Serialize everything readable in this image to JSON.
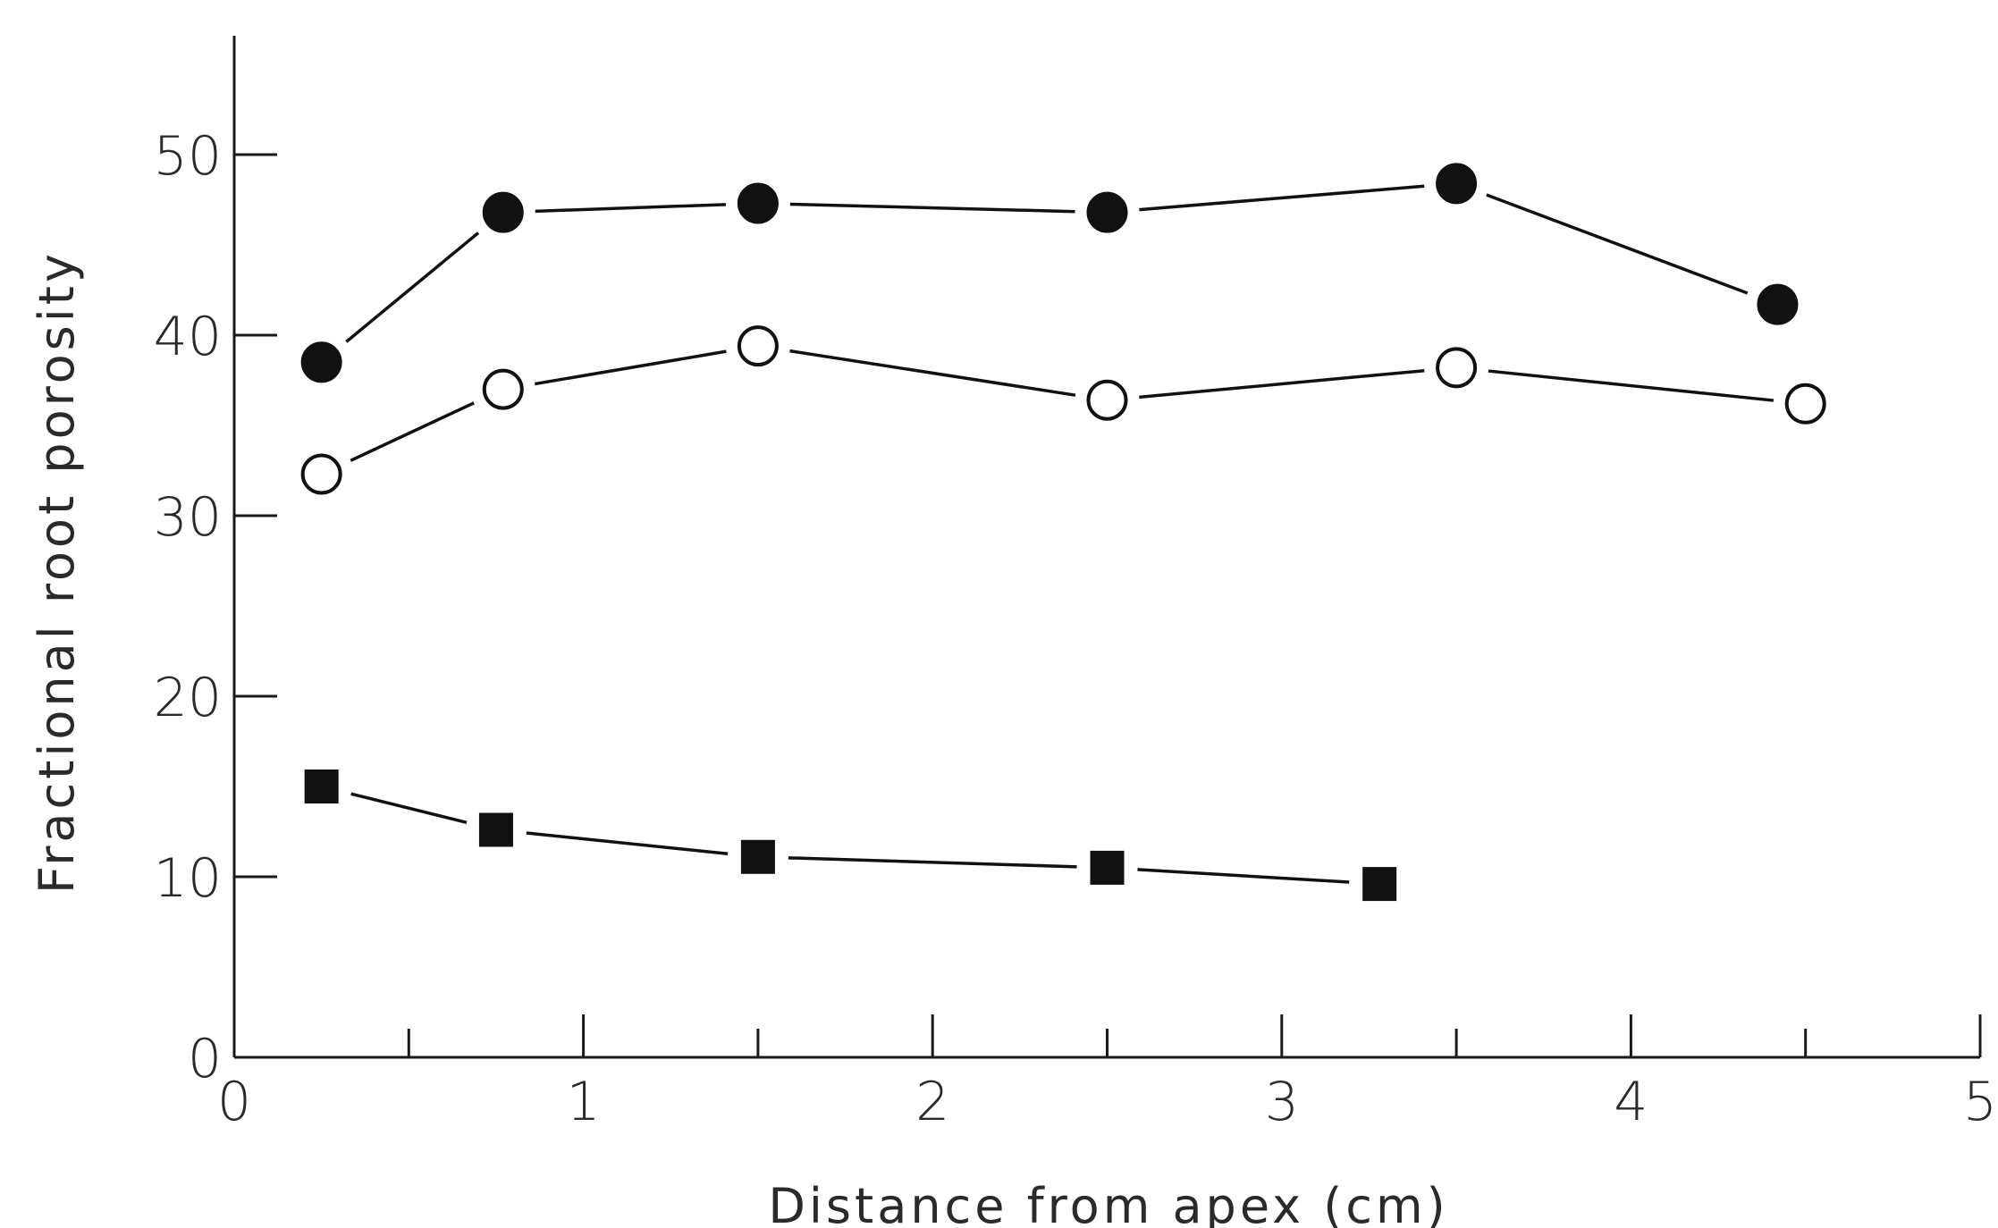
{
  "chart_data": {
    "type": "line",
    "title": "",
    "xlabel": "Distance from apex (cm)",
    "ylabel": "Fractional root porosity",
    "xlim": [
      0,
      5
    ],
    "ylim": [
      0,
      55
    ],
    "x_ticks": [
      "0",
      "1",
      "2",
      "3",
      "4",
      "5"
    ],
    "y_ticks": [
      "0",
      "10",
      "20",
      "30",
      "40",
      "50"
    ],
    "x_minor_ticks": [
      0.5,
      1.5,
      2.5,
      3.5,
      4.5
    ],
    "grid": false,
    "legend": "none",
    "series": [
      {
        "marker": "filled-circle",
        "color": "#111111",
        "points": [
          [
            0.25,
            38.5
          ],
          [
            0.77,
            46.8
          ],
          [
            1.5,
            47.3
          ],
          [
            2.5,
            46.8
          ],
          [
            3.5,
            48.4
          ],
          [
            4.42,
            41.7
          ]
        ]
      },
      {
        "marker": "open-circle",
        "color": "#111111",
        "points": [
          [
            0.25,
            32.3
          ],
          [
            0.77,
            37.0
          ],
          [
            1.5,
            39.4
          ],
          [
            2.5,
            36.4
          ],
          [
            3.5,
            38.2
          ],
          [
            4.5,
            36.2
          ]
        ]
      },
      {
        "marker": "filled-square",
        "color": "#111111",
        "points": [
          [
            0.25,
            15.0
          ],
          [
            0.75,
            12.6
          ],
          [
            1.5,
            11.1
          ],
          [
            2.5,
            10.5
          ],
          [
            3.28,
            9.6
          ]
        ]
      }
    ]
  }
}
